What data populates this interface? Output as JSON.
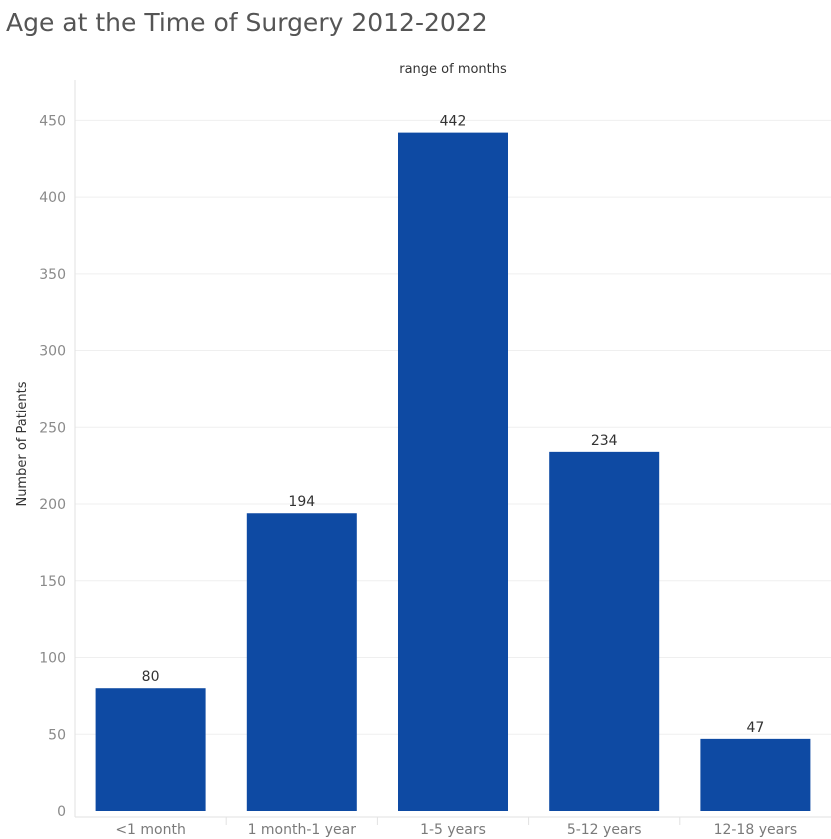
{
  "page": {
    "title": "Age at the Time of Surgery 2012-2022"
  },
  "chart_data": {
    "type": "bar",
    "title": "Age at the Time of Surgery 2012-2022",
    "xlabel": "range of months",
    "xlabel_position": "top",
    "ylabel": "Number of Patients",
    "categories": [
      "<1 month",
      "1 month-1 year",
      "1-5 years",
      "5-12 years",
      "12-18 years"
    ],
    "values": [
      80,
      194,
      442,
      234,
      47
    ],
    "data_labels": [
      "80",
      "194",
      "442",
      "234",
      "47"
    ],
    "ylim": [
      0,
      475
    ],
    "yticks": [
      0,
      50,
      100,
      150,
      200,
      250,
      300,
      350,
      400,
      450
    ],
    "grid": true,
    "legend": "none",
    "bar_color": "#0E4AA3"
  }
}
